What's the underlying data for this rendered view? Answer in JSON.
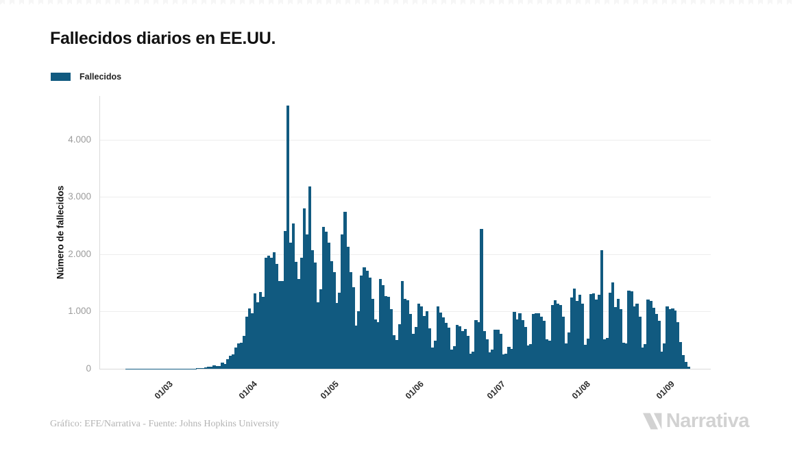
{
  "header": {
    "title": "Fallecidos diarios en EE.UU."
  },
  "legend": {
    "label": "Fallecidos",
    "color": "#115a80"
  },
  "footer": {
    "credit": "Gráfico: EFE/Narrativa - Fuente: Johns Hopkins University",
    "brand": "Narrativa"
  },
  "chart_data": {
    "type": "bar",
    "title": "Fallecidos diarios en EE.UU.",
    "series_name": "Fallecidos",
    "xlabel": "",
    "ylabel": "Número de fallecidos",
    "bar_color": "#115a80",
    "grid": true,
    "legend_position": "top-left",
    "ylim": [
      0,
      4760
    ],
    "yticks": [
      {
        "value": 0,
        "label": "0"
      },
      {
        "value": 1000,
        "label": "1.000"
      },
      {
        "value": 2000,
        "label": "2.000"
      },
      {
        "value": 3000,
        "label": "3.000"
      },
      {
        "value": 4000,
        "label": "4.000"
      }
    ],
    "x_unit": "day",
    "date_range": "2020-02-07 to 2020-09-09",
    "months": [
      {
        "label": null,
        "days": [
          0,
          0,
          0,
          0,
          0,
          0,
          0,
          0,
          0,
          1,
          1,
          2,
          1,
          2,
          2,
          1,
          2,
          2,
          3,
          2,
          3,
          3,
          5
        ]
      },
      {
        "label": "01/03",
        "days": [
          1,
          5,
          3,
          2,
          5,
          3,
          4,
          4,
          4,
          4,
          6,
          4,
          10,
          11,
          16,
          23,
          40,
          41,
          57,
          49,
          46,
          111,
          80,
          164,
          225,
          247,
          372,
          441,
          453,
          573,
          912
        ]
      },
      {
        "label": "01/04",
        "days": [
          1049,
          968,
          1321,
          1165,
          1342,
          1255,
          1940,
          1973,
          1941,
          2035,
          1830,
          1528,
          1535,
          2407,
          4591,
          2198,
          2535,
          1867,
          1561,
          1939,
          2804,
          2341,
          3176,
          2065,
          1857,
          1157,
          1384,
          2470,
          2390,
          2201
        ]
      },
      {
        "label": "01/05",
        "days": [
          1883,
          1691,
          1154,
          1324,
          2350,
          2742,
          2129,
          1687,
          1422,
          750,
          1008,
          1630,
          1772,
          1715,
          1595,
          1218,
          865,
          808,
          1568,
          1461,
          1263,
          1260,
          1035,
          592,
          505,
          774,
          1535,
          1223,
          1193,
          960,
          605
        ]
      },
      {
        "label": "01/06",
        "days": [
          730,
          1134,
          1083,
          925,
          1010,
          709,
          373,
          491,
          1093,
          984,
          903,
          803,
          714,
          330,
          389,
          768,
          739,
          653,
          690,
          580,
          267,
          294,
          850,
          808,
          2437,
          657,
          512,
          287,
          335,
          676
        ]
      },
      {
        "label": "01/07",
        "days": [
          685,
          613,
          252,
          263,
          381,
          351,
          993,
          862,
          974,
          849,
          730,
          408,
          430,
          957,
          974,
          969,
          908,
          832,
          514,
          488,
          1113,
          1195,
          1140,
          1113,
          909,
          445,
          637,
          1244,
          1403,
          1180,
          1296
        ]
      },
      {
        "label": "01/08",
        "days": [
          1133,
          414,
          532,
          1302,
          1321,
          1203,
          1290,
          2064,
          515,
          541,
          1324,
          1504,
          1076,
          1217,
          1043,
          459,
          439,
          1358,
          1356,
          1090,
          1142,
          904,
          365,
          426,
          1205,
          1184,
          1068,
          953,
          842,
          302,
          448
        ]
      },
      {
        "label": "01/09",
        "days": [
          1086,
          1035,
          1050,
          1020,
          810,
          463,
          236,
          118,
          40
        ]
      }
    ]
  }
}
